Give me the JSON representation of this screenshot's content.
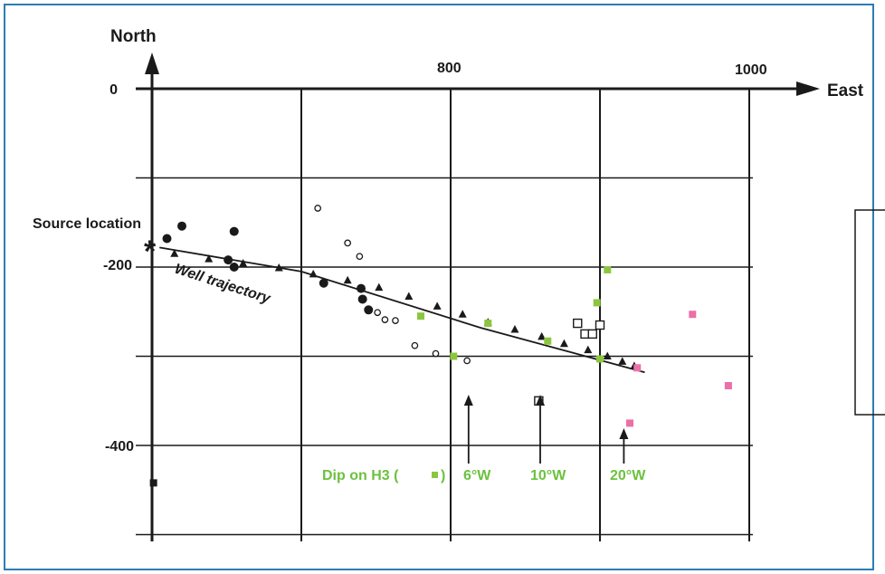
{
  "chart_data": {
    "type": "scatter",
    "x_axis": {
      "label": "East",
      "ticks": [
        {
          "value": 800,
          "label": "800"
        },
        {
          "value": 1000,
          "label": "1000"
        }
      ]
    },
    "y_axis": {
      "label": "North",
      "ticks": [
        {
          "value": 0,
          "label": "0"
        },
        {
          "value": -200,
          "label": "-200"
        },
        {
          "value": -400,
          "label": "-400"
        }
      ]
    },
    "xlim": [
      600,
      1000
    ],
    "ylim": [
      -500,
      0
    ],
    "grid": true,
    "colors": {
      "green": "#8cc63f",
      "pink": "#ec6fa8",
      "black": "#1a1a1a",
      "frame": "#2b7cb4"
    },
    "source_location": {
      "label": "Source location",
      "x": 605,
      "y": -178
    },
    "well_trajectory": {
      "label": "Well trajectory",
      "points": [
        [
          605,
          -178
        ],
        [
          700,
          -205
        ],
        [
          820,
          -268
        ],
        [
          930,
          -318
        ]
      ],
      "markers": [
        [
          615,
          -185
        ],
        [
          638,
          -191
        ],
        [
          661,
          -196
        ],
        [
          685,
          -201
        ],
        [
          708,
          -208
        ],
        [
          731,
          -215
        ],
        [
          752,
          -223
        ],
        [
          772,
          -233
        ],
        [
          791,
          -244
        ],
        [
          808,
          -253
        ],
        [
          825,
          -262
        ],
        [
          843,
          -270
        ],
        [
          861,
          -278
        ],
        [
          876,
          -286
        ],
        [
          892,
          -293
        ],
        [
          905,
          -300
        ],
        [
          915,
          -306
        ],
        [
          923,
          -311
        ]
      ]
    },
    "series": [
      {
        "marker": "filled-circle",
        "color": "#1a1a1a",
        "points": [
          [
            610,
            -168
          ],
          [
            620,
            -154
          ],
          [
            651,
            -192
          ],
          [
            655,
            -200
          ],
          [
            655,
            -160
          ],
          [
            715,
            -218
          ],
          [
            740,
            -224
          ],
          [
            741,
            -236
          ],
          [
            745,
            -248
          ]
        ]
      },
      {
        "marker": "open-circle",
        "color": "#1a1a1a",
        "points": [
          [
            711,
            -134
          ],
          [
            731,
            -173
          ],
          [
            739,
            -188
          ],
          [
            751,
            -251
          ],
          [
            756,
            -259
          ],
          [
            763,
            -260
          ],
          [
            776,
            -288
          ],
          [
            790,
            -297
          ],
          [
            811,
            -305
          ]
        ]
      },
      {
        "marker": "open-square",
        "color": "#1a1a1a",
        "points": [
          [
            859,
            -350
          ],
          [
            885,
            -263
          ],
          [
            890,
            -275
          ],
          [
            895,
            -275
          ],
          [
            900,
            -265
          ]
        ]
      },
      {
        "marker": "filled-square",
        "color": "#8cc63f",
        "name": "Dip on H3",
        "points": [
          [
            780,
            -255
          ],
          [
            802,
            -300
          ],
          [
            825,
            -263
          ],
          [
            865,
            -283
          ],
          [
            898,
            -240
          ],
          [
            900,
            -303
          ],
          [
            905,
            -203
          ]
        ]
      },
      {
        "marker": "filled-square",
        "color": "#ec6fa8",
        "points": [
          [
            920,
            -375
          ],
          [
            925,
            -313
          ],
          [
            962,
            -253
          ],
          [
            986,
            -333
          ]
        ]
      },
      {
        "marker": "filled-square",
        "color": "#1a1a1a",
        "points": [
          [
            601,
            -442
          ]
        ]
      }
    ],
    "annotations": [
      {
        "text": "6°W",
        "x": 812,
        "y": -440
      },
      {
        "text": "10°W",
        "x": 860,
        "y": -440
      },
      {
        "text": "20°W",
        "x": 916,
        "y": -440
      }
    ],
    "legend_text": {
      "prefix": "Dip on H3 (",
      "suffix": ")"
    }
  }
}
